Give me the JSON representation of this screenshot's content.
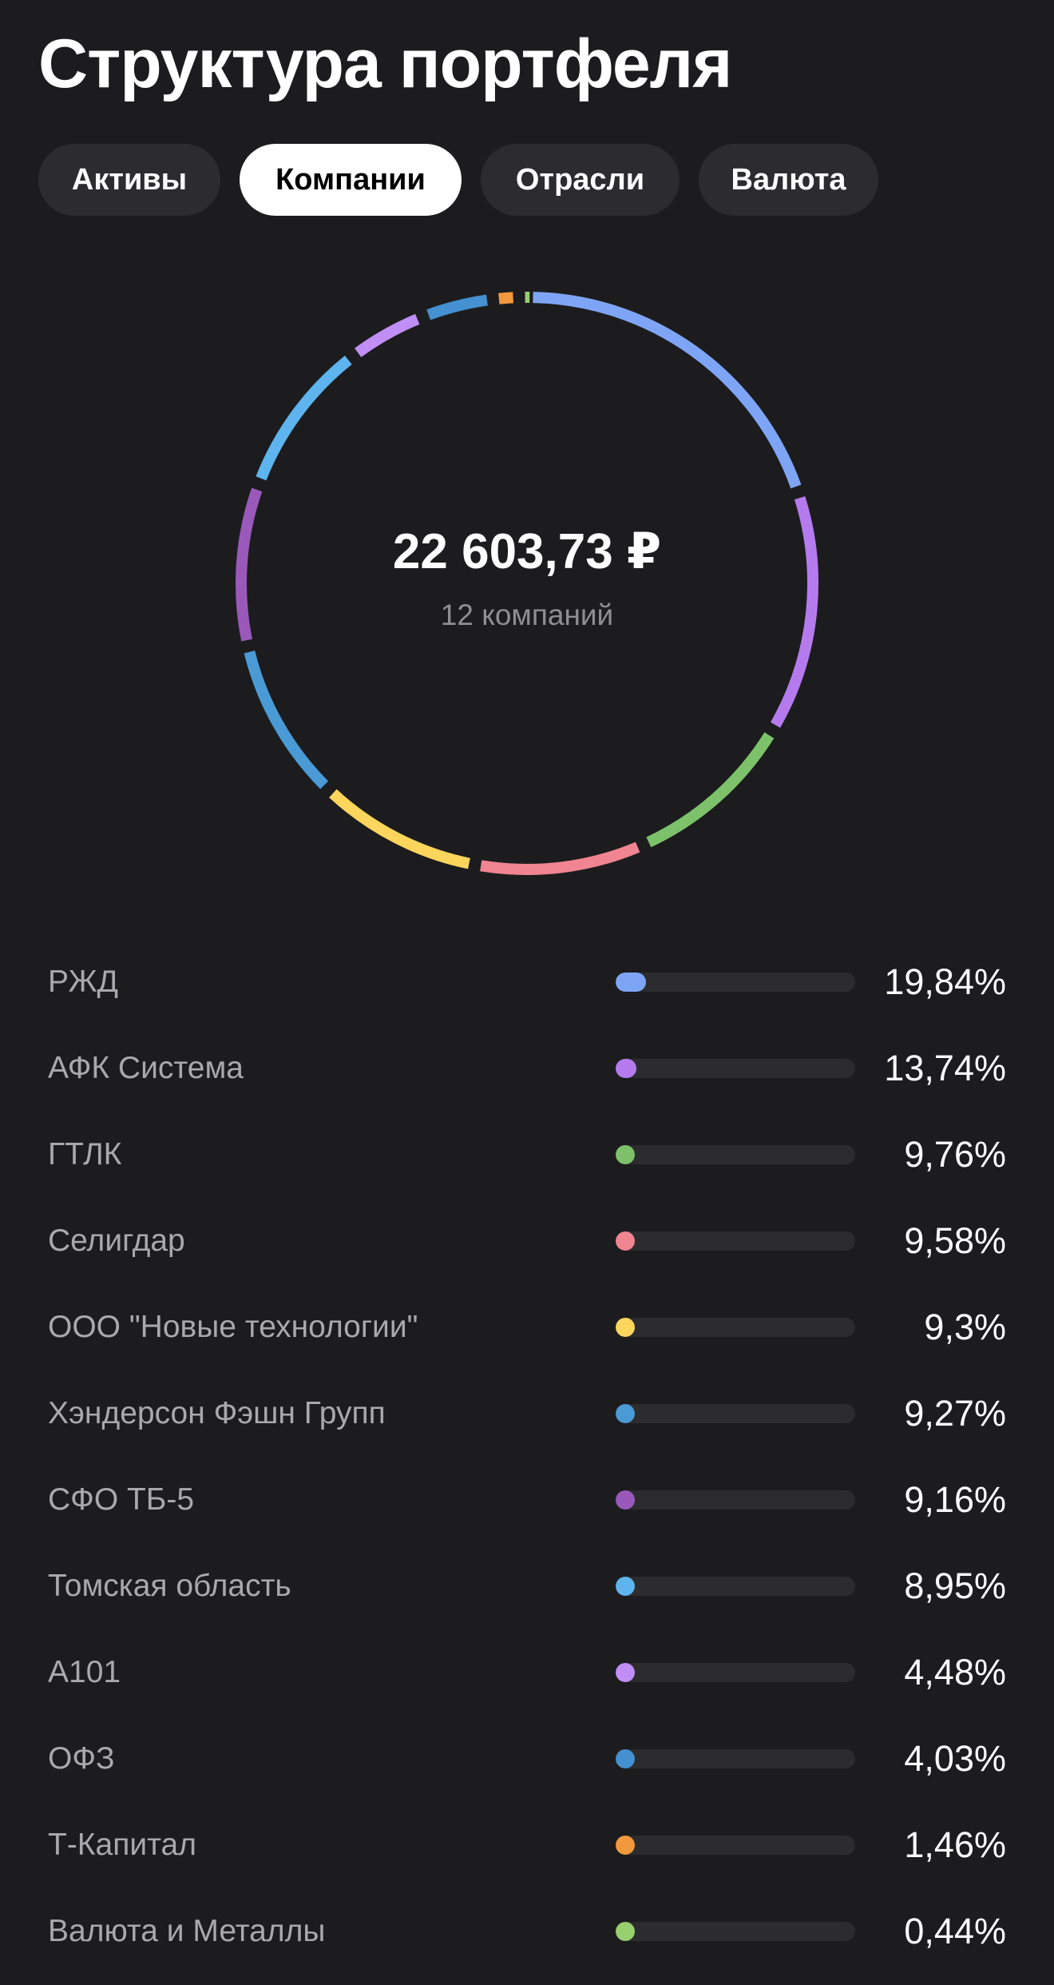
{
  "header": {
    "title": "Структура портфеля"
  },
  "tabs": [
    {
      "label": "Активы",
      "active": false
    },
    {
      "label": "Компании",
      "active": true
    },
    {
      "label": "Отрасли",
      "active": false
    },
    {
      "label": "Валюта",
      "active": false
    }
  ],
  "summary": {
    "total": "22 603,73 ₽",
    "count_label": "12 компаний"
  },
  "chart_data": {
    "type": "pie",
    "categories": [
      "РЖД",
      "АФК Система",
      "ГТЛК",
      "Селигдар",
      "ООО \"Новые технологии\"",
      "Хэндерсон Фэшн Групп",
      "СФО ТБ-5",
      "Томская область",
      "А101",
      "ОФЗ",
      "Т-Капитал",
      "Валюта и Металлы"
    ],
    "values": [
      19.84,
      13.74,
      9.76,
      9.58,
      9.3,
      9.27,
      9.16,
      8.95,
      4.48,
      4.03,
      1.46,
      0.44
    ],
    "colors": [
      "#7ea5f5",
      "#b57bee",
      "#7dc26b",
      "#f08490",
      "#fcd55d",
      "#4a9ad6",
      "#9a59ba",
      "#5eb4ee",
      "#c08ef4",
      "#4490d1",
      "#f2993e",
      "#98cf6f"
    ]
  },
  "companies": [
    {
      "name": "РЖД",
      "percent": "19,84%",
      "value": 19.84,
      "color": "#7ea5f5"
    },
    {
      "name": "АФК Система",
      "percent": "13,74%",
      "value": 13.74,
      "color": "#b57bee"
    },
    {
      "name": "ГТЛК",
      "percent": "9,76%",
      "value": 9.76,
      "color": "#7dc26b"
    },
    {
      "name": "Селигдар",
      "percent": "9,58%",
      "value": 9.58,
      "color": "#f08490"
    },
    {
      "name": "ООО \"Новые технологии\"",
      "percent": "9,3%",
      "value": 9.3,
      "color": "#fcd55d"
    },
    {
      "name": "Хэндерсон Фэшн Групп",
      "percent": "9,27%",
      "value": 9.27,
      "color": "#4a9ad6"
    },
    {
      "name": "СФО ТБ-5",
      "percent": "9,16%",
      "value": 9.16,
      "color": "#9a59ba"
    },
    {
      "name": "Томская область",
      "percent": "8,95%",
      "value": 8.95,
      "color": "#5eb4ee"
    },
    {
      "name": "А101",
      "percent": "4,48%",
      "value": 4.48,
      "color": "#c08ef4"
    },
    {
      "name": "ОФЗ",
      "percent": "4,03%",
      "value": 4.03,
      "color": "#4490d1"
    },
    {
      "name": "Т-Капитал",
      "percent": "1,46%",
      "value": 1.46,
      "color": "#f2993e"
    },
    {
      "name": "Валюта и Металлы",
      "percent": "0,44%",
      "value": 0.44,
      "color": "#98cf6f"
    }
  ]
}
